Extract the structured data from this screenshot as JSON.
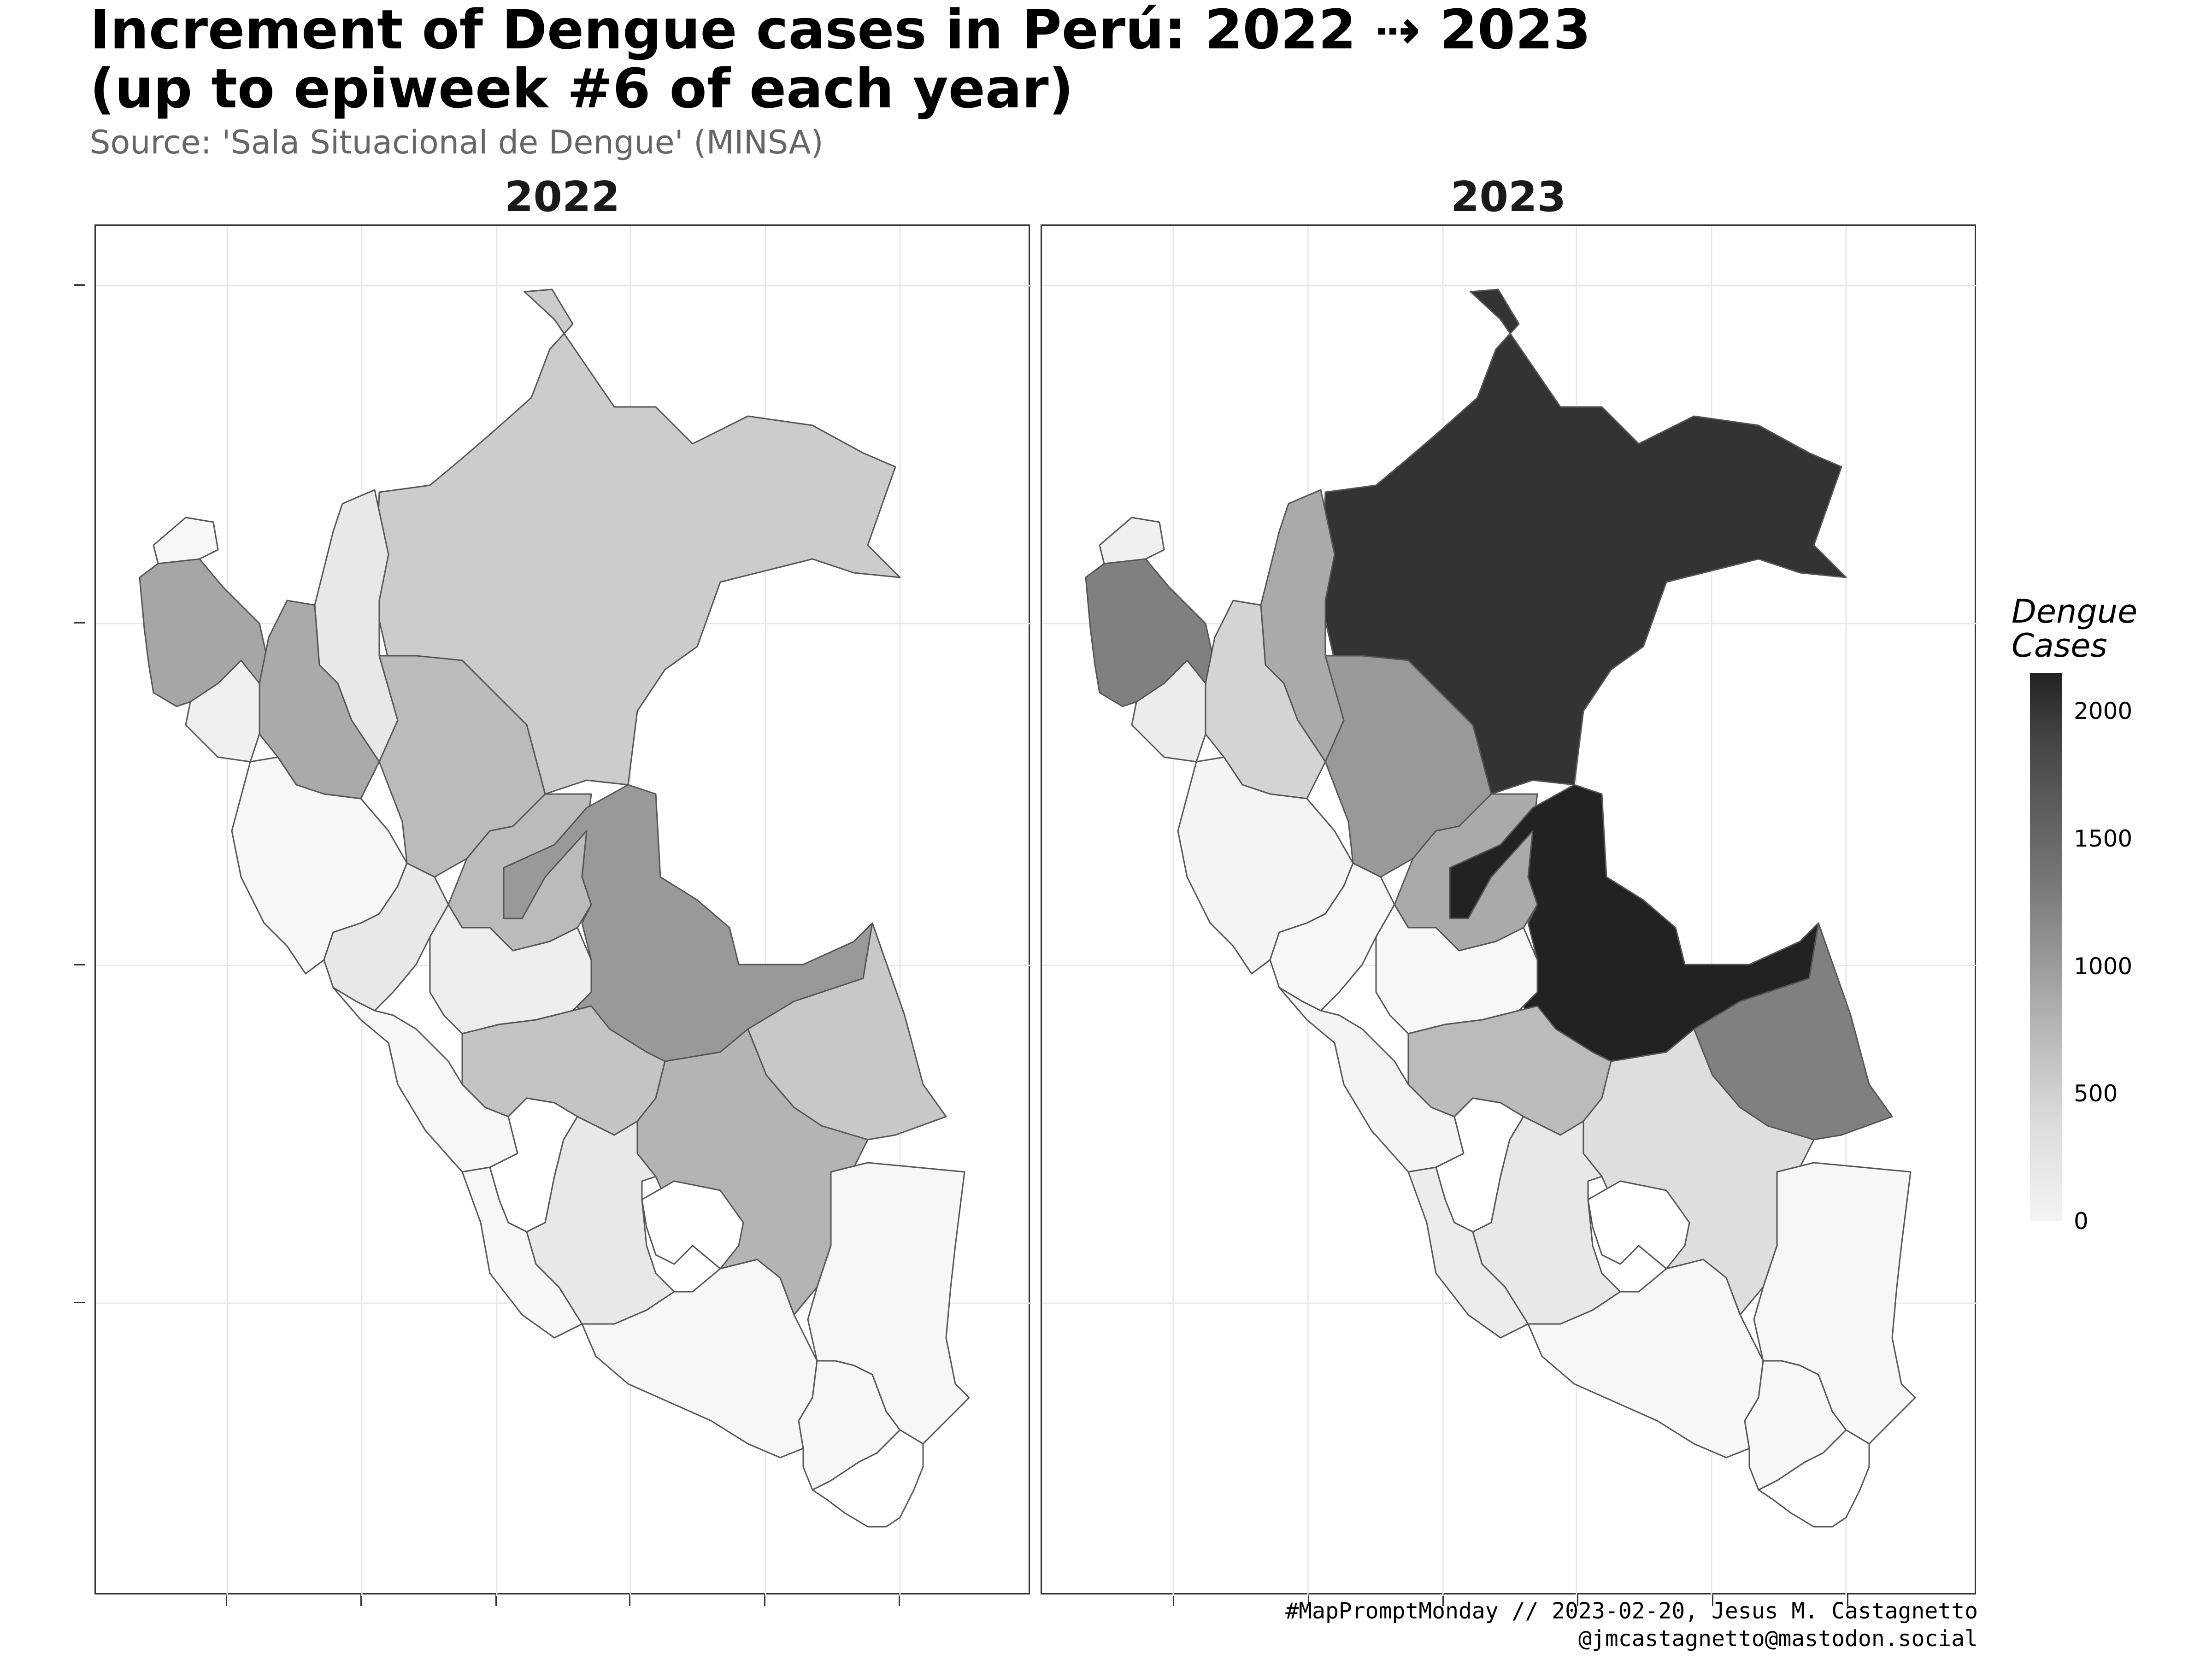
{
  "title_line1": "Increment of Dengue cases in Perú: 2022 ⇢ 2023",
  "title_line2": "(up to epiweek #6 of each year)",
  "subtitle": "Source: 'Sala Situacional de Dengue' (MINSA)",
  "facets": [
    {
      "label": "2022"
    },
    {
      "label": "2023"
    }
  ],
  "legend": {
    "title_line1": "Dengue",
    "title_line2": "Cases",
    "ticks": [
      "2000",
      "1500",
      "1000",
      "500",
      "0"
    ],
    "range": [
      0,
      2150
    ],
    "tick_values": [
      2000,
      1500,
      1000,
      500,
      0
    ],
    "color_low": "#f7f7f7",
    "color_high": "#222222"
  },
  "caption_line1": "#MapPromptMonday // 2023-02-20, Jesus M. Castagnetto",
  "caption_line2": "@jmcastagnetto@mastodon.social"
}
